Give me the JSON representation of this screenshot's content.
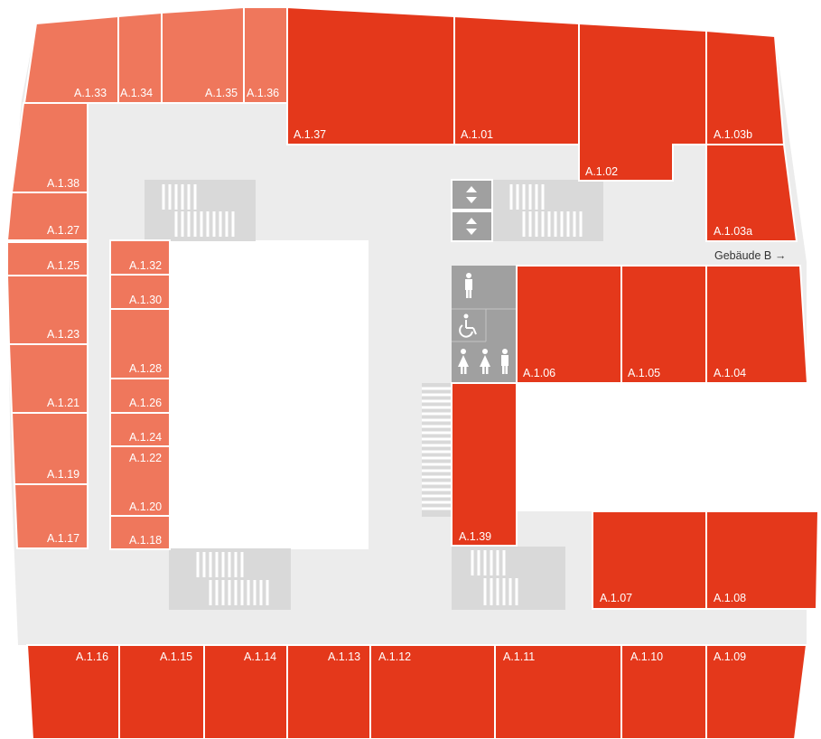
{
  "colors": {
    "background": "#ffffff",
    "corridor": "#ececec",
    "room_dark": "#e4381b",
    "room_light": "#ef775c",
    "stairs": "#d9d9d9",
    "stairs_lines": "#ffffff",
    "facility": "#a0a0a0",
    "text": "#ffffff",
    "text_dark": "#333333"
  },
  "floor": {
    "rooms_light": [
      "A.1.33",
      "A.1.34",
      "A.1.35",
      "A.1.36",
      "A.1.38",
      "A.1.27",
      "A.1.25",
      "A.1.23",
      "A.1.21",
      "A.1.19",
      "A.1.17",
      "A.1.32",
      "A.1.30",
      "A.1.28",
      "A.1.26",
      "A.1.24",
      "A.1.22",
      "A.1.20",
      "A.1.18"
    ],
    "rooms_dark": [
      "A.1.37",
      "A.1.01",
      "A.1.02",
      "A.1.03b",
      "A.1.03a",
      "A.1.06",
      "A.1.05",
      "A.1.04",
      "A.1.39",
      "A.1.07",
      "A.1.08",
      "A.1.16",
      "A.1.15",
      "A.1.14",
      "A.1.13",
      "A.1.12",
      "A.1.11",
      "A.1.10",
      "A.1.09"
    ],
    "building_link": "Gebäude B",
    "building_link_arrow": "→",
    "icons": [
      "elevator-icon",
      "elevator-icon",
      "men-toilet-icon",
      "wheelchair-toilet-icon",
      "women-toilet-icon",
      "women-toilet-icon",
      "men-toilet-icon"
    ]
  }
}
